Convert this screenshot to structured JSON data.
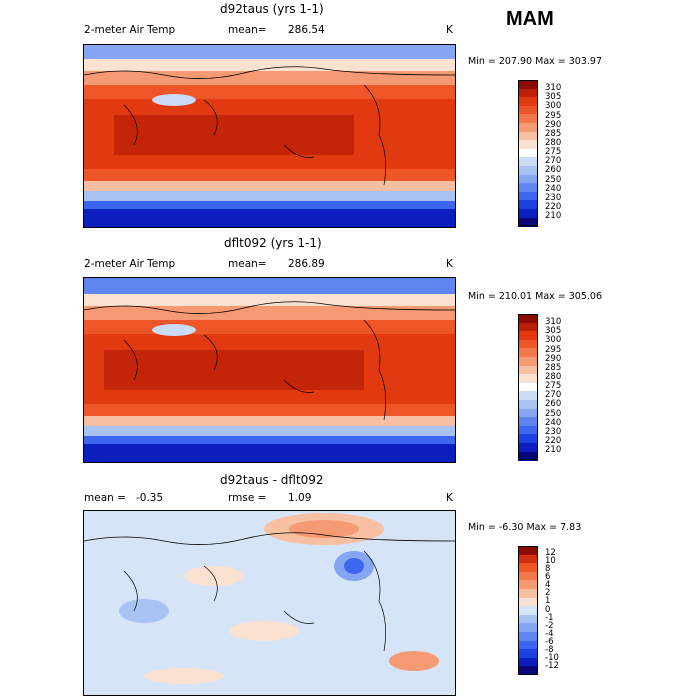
{
  "season": "MAM",
  "colors": {
    "abs_scale": [
      "#08087a",
      "#0a1fbe",
      "#1c3fe0",
      "#3d66f0",
      "#5f86f0",
      "#85a6f2",
      "#a8c2f4",
      "#cadbf6",
      "#ffffff",
      "#fbe1cf",
      "#f8c0a2",
      "#f69a74",
      "#f2784c",
      "#ee5628",
      "#e23a10",
      "#bd2008",
      "#8c0b03"
    ],
    "diff_scale": [
      "#08087a",
      "#0a1fbe",
      "#1c3fe0",
      "#3d66f0",
      "#5f86f0",
      "#85a6f2",
      "#a8c2f4",
      "#d6e4f7",
      "#fbe1cf",
      "#f8c0a2",
      "#f69a74",
      "#f2784c",
      "#ee5628",
      "#d12f0e",
      "#8c0b03"
    ]
  },
  "panels": [
    {
      "id": "d92taus",
      "title": "d92taus (yrs 1-1)",
      "variable": "2-meter Air Temp",
      "mean_label": "mean=",
      "mean_value": "286.54",
      "units": "K",
      "minmax": "Min = 207.90 Max = 303.97",
      "colorbar_labels": [
        "310",
        "305",
        "300",
        "295",
        "290",
        "285",
        "280",
        "275",
        "270",
        "260",
        "250",
        "240",
        "230",
        "220",
        "210"
      ]
    },
    {
      "id": "dflt092",
      "title": "dflt092 (yrs 1-1)",
      "variable": "2-meter Air Temp",
      "mean_label": "mean=",
      "mean_value": "286.89",
      "units": "K",
      "minmax": "Min = 210.01 Max = 305.06",
      "colorbar_labels": [
        "310",
        "305",
        "300",
        "295",
        "290",
        "285",
        "280",
        "275",
        "270",
        "260",
        "250",
        "240",
        "230",
        "220",
        "210"
      ]
    },
    {
      "id": "diff",
      "title": "d92taus - dflt092",
      "mean_label": "mean =",
      "mean_value": "-0.35",
      "rmse_label": "rmse =",
      "rmse_value": "1.09",
      "units": "K",
      "minmax": "Min = -6.30 Max = 7.83",
      "colorbar_labels": [
        "12",
        "10",
        "8",
        "6",
        "4",
        "2",
        "1",
        "0",
        "-1",
        "-2",
        "-4",
        "-6",
        "-8",
        "-10",
        "-12"
      ]
    }
  ]
}
